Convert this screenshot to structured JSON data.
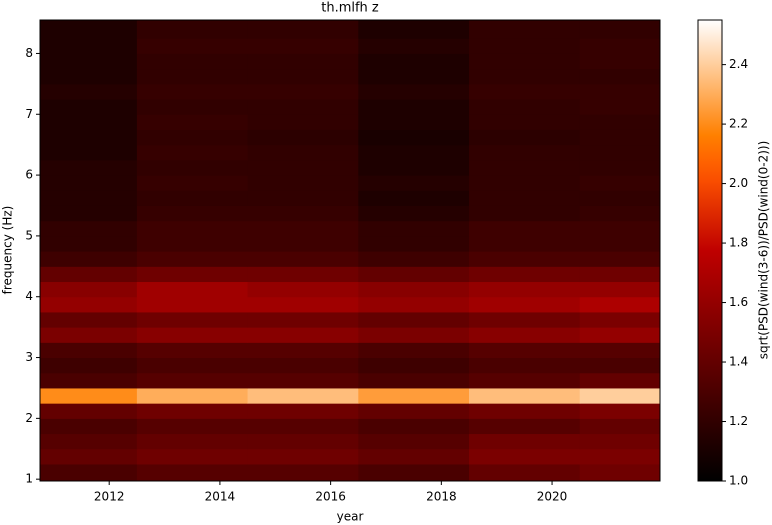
{
  "chart_data": {
    "type": "heatmap",
    "title": "th.mlfh z",
    "xlabel": "year",
    "ylabel": "frequency (Hz)",
    "colorbar_label": "sqrt(PSD(wind(3-6))/PSD(wind(0-2)))",
    "colormap": "gist_heat",
    "xlim": [
      2010.75,
      2021.95
    ],
    "xticks": [
      2012,
      2014,
      2016,
      2018,
      2020
    ],
    "ylim": [
      0.97,
      8.55
    ],
    "yticks": [
      1,
      2,
      3,
      4,
      5,
      6,
      7,
      8
    ],
    "clim": [
      1.0,
      2.55
    ],
    "cticks": [
      {
        "value": 1.0,
        "label": "1.0"
      },
      1.2,
      1.4,
      1.6,
      1.8,
      {
        "value": 2.0,
        "label": "2.0"
      },
      2.2,
      2.4
    ],
    "x_bins": [
      2010.75,
      2012.5,
      2014.5,
      2016.5,
      2018.5,
      2020.5,
      2021.95
    ],
    "y_bins": [
      0.97,
      1.25,
      1.5,
      1.75,
      2.0,
      2.25,
      2.5,
      2.75,
      3.0,
      3.25,
      3.5,
      3.75,
      4.0,
      4.25,
      4.5,
      4.75,
      5.0,
      5.25,
      5.5,
      5.75,
      6.0,
      6.25,
      6.5,
      6.75,
      7.0,
      7.25,
      7.5,
      7.75,
      8.0,
      8.25,
      8.55
    ],
    "z": [
      [
        1.3,
        1.35,
        1.35,
        1.3,
        1.4,
        1.45
      ],
      [
        1.4,
        1.45,
        1.45,
        1.4,
        1.5,
        1.5
      ],
      [
        1.35,
        1.4,
        1.4,
        1.35,
        1.45,
        1.45
      ],
      [
        1.3,
        1.35,
        1.35,
        1.3,
        1.35,
        1.4
      ],
      [
        1.4,
        1.45,
        1.45,
        1.4,
        1.45,
        1.5
      ],
      [
        2.2,
        2.3,
        2.35,
        2.25,
        2.35,
        2.4
      ],
      [
        1.3,
        1.35,
        1.35,
        1.3,
        1.35,
        1.4
      ],
      [
        1.25,
        1.3,
        1.3,
        1.25,
        1.3,
        1.3
      ],
      [
        1.3,
        1.35,
        1.35,
        1.3,
        1.35,
        1.35
      ],
      [
        1.5,
        1.55,
        1.55,
        1.5,
        1.55,
        1.6
      ],
      [
        1.4,
        1.45,
        1.45,
        1.4,
        1.45,
        1.5
      ],
      [
        1.6,
        1.65,
        1.65,
        1.6,
        1.65,
        1.7
      ],
      [
        1.55,
        1.65,
        1.6,
        1.55,
        1.6,
        1.6
      ],
      [
        1.4,
        1.45,
        1.45,
        1.4,
        1.45,
        1.45
      ],
      [
        1.25,
        1.3,
        1.3,
        1.25,
        1.3,
        1.3
      ],
      [
        1.2,
        1.25,
        1.25,
        1.2,
        1.25,
        1.25
      ],
      [
        1.2,
        1.25,
        1.25,
        1.2,
        1.25,
        1.25
      ],
      [
        1.15,
        1.22,
        1.22,
        1.15,
        1.2,
        1.22
      ],
      [
        1.15,
        1.2,
        1.2,
        1.12,
        1.2,
        1.2
      ],
      [
        1.15,
        1.22,
        1.2,
        1.15,
        1.2,
        1.22
      ],
      [
        1.15,
        1.2,
        1.2,
        1.12,
        1.2,
        1.2
      ],
      [
        1.12,
        1.22,
        1.2,
        1.12,
        1.2,
        1.2
      ],
      [
        1.12,
        1.2,
        1.18,
        1.1,
        1.18,
        1.2
      ],
      [
        1.12,
        1.22,
        1.2,
        1.12,
        1.2,
        1.2
      ],
      [
        1.12,
        1.2,
        1.2,
        1.12,
        1.2,
        1.22
      ],
      [
        1.15,
        1.22,
        1.22,
        1.15,
        1.22,
        1.22
      ],
      [
        1.12,
        1.2,
        1.2,
        1.12,
        1.2,
        1.2
      ],
      [
        1.12,
        1.2,
        1.2,
        1.12,
        1.2,
        1.22
      ],
      [
        1.12,
        1.22,
        1.22,
        1.15,
        1.2,
        1.22
      ],
      [
        1.12,
        1.2,
        1.2,
        1.12,
        1.2,
        1.2
      ]
    ]
  }
}
